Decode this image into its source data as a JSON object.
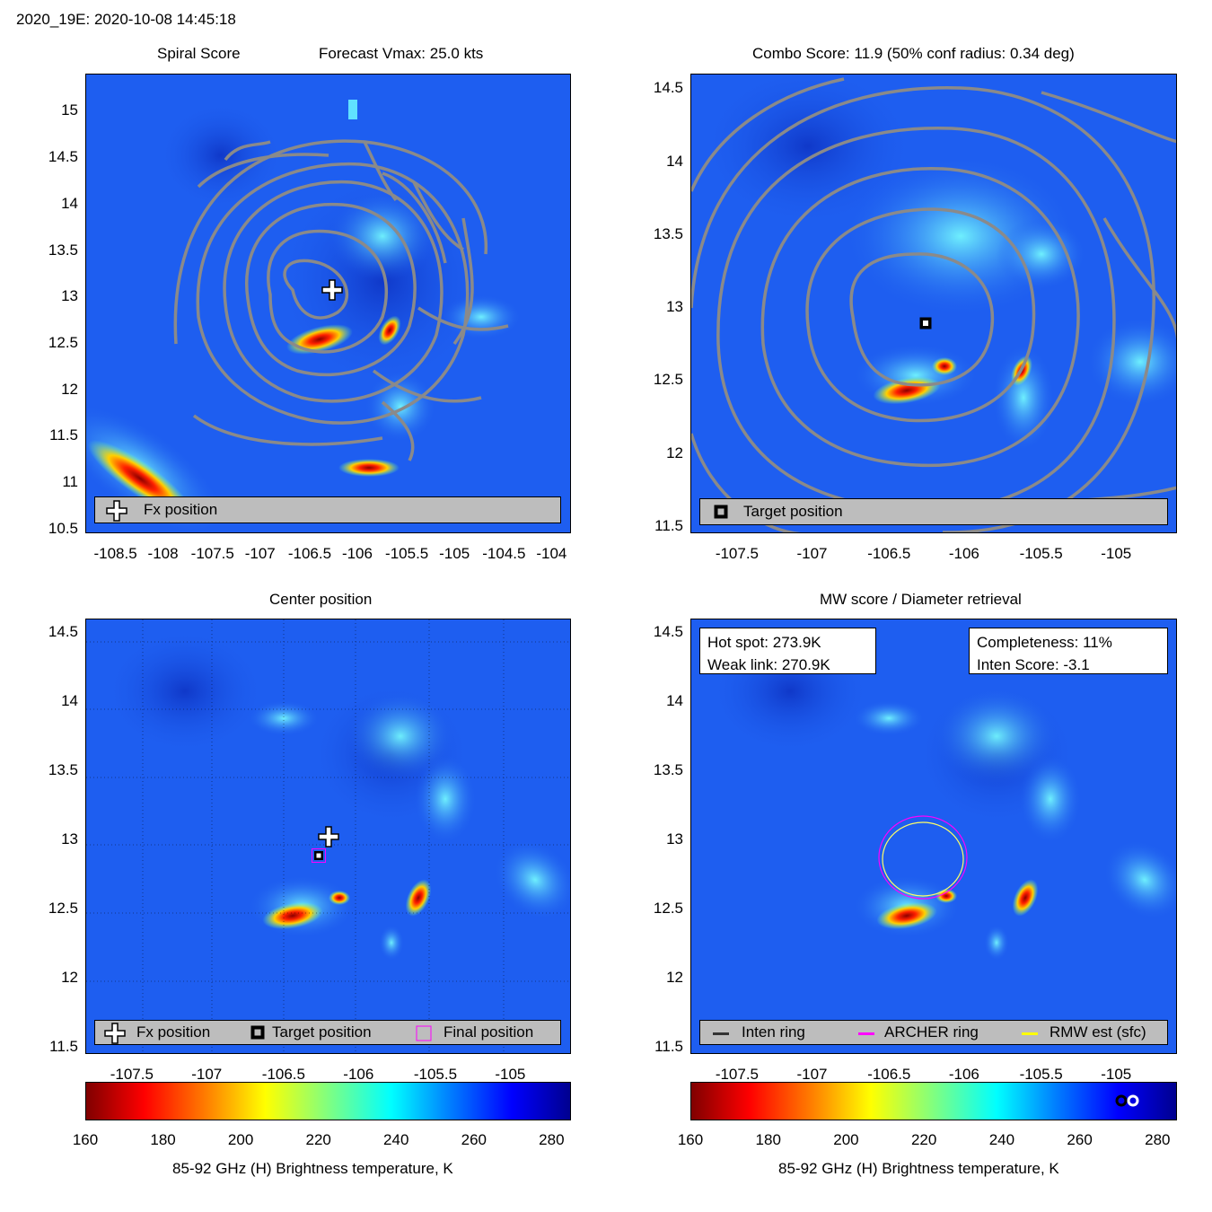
{
  "header": {
    "title": "2020_19E: 2020-10-08 14:45:18"
  },
  "panels": {
    "spiral": {
      "title_left": "Spiral Score",
      "title_right": "Forecast Vmax: 25.0 kts",
      "legend": [
        "Fx position"
      ]
    },
    "combo": {
      "title": "Combo Score: 11.9  (50% conf radius: 0.34 deg)",
      "legend": [
        "Target position"
      ]
    },
    "center": {
      "title": "Center position",
      "legend": [
        "Fx position",
        "Target position",
        "Final position"
      ]
    },
    "mw": {
      "title": "MW score / Diameter retrieval",
      "hot_spot": "Hot spot: 273.9K",
      "weak_link": "Weak link: 270.9K",
      "completeness": "Completeness: 11%",
      "inten_score": "Inten Score: -3.1",
      "legend": [
        "Inten ring",
        "ARCHER ring",
        "RMW est (sfc)"
      ]
    }
  },
  "colorbar": {
    "label": "85-92 GHz (H) Brightness temperature, K",
    "ticks": [
      "160",
      "180",
      "200",
      "220",
      "240",
      "260",
      "280"
    ]
  },
  "colors": {
    "ocean": "#1e5ef0",
    "contour": "#8a8a8a",
    "legend_bg": "#bdbdbd",
    "archer": "#ff00ff",
    "rmw": "#ffff00",
    "inten": "#333333"
  },
  "chart_data": [
    {
      "type": "heatmap",
      "title": "Spiral Score",
      "subtitle": "Forecast Vmax: 25.0 kts",
      "xticks": [
        "-108.5",
        "-108",
        "-107.5",
        "-107",
        "-106.5",
        "-106",
        "-105.5",
        "-105",
        "-104.5",
        "-104"
      ],
      "yticks": [
        "15",
        "14.5",
        "14",
        "13.5",
        "13",
        "12.5",
        "12",
        "11.5",
        "11",
        "10.5"
      ],
      "xlim": [
        -108.8,
        -103.8
      ],
      "ylim": [
        10.45,
        15.4
      ],
      "markers": [
        {
          "name": "Fx position",
          "lon": -106.15,
          "lat": 13.08
        }
      ]
    },
    {
      "type": "heatmap",
      "title": "Combo Score: 11.9  (50% conf radius: 0.34 deg)",
      "xticks": [
        "-107.5",
        "-107",
        "-106.5",
        "-106",
        "-105.5",
        "-105"
      ],
      "yticks": [
        "14.5",
        "14",
        "13.5",
        "13",
        "12.5",
        "12",
        "11.5"
      ],
      "xlim": [
        -107.8,
        -104.6
      ],
      "ylim": [
        11.45,
        14.6
      ],
      "markers": [
        {
          "name": "Target position",
          "lon": -106.25,
          "lat": 12.92
        }
      ]
    },
    {
      "type": "heatmap",
      "title": "Center position",
      "xticks": [
        "-107.5",
        "-107",
        "-106.5",
        "-106",
        "-105.5",
        "-105"
      ],
      "yticks": [
        "14.5",
        "14",
        "13.5",
        "13",
        "12.5",
        "12",
        "11.5"
      ],
      "xlim": [
        -107.8,
        -104.6
      ],
      "ylim": [
        11.45,
        14.6
      ],
      "markers": [
        {
          "name": "Fx position",
          "lon": -106.15,
          "lat": 13.07
        },
        {
          "name": "Target position",
          "lon": -106.24,
          "lat": 12.92
        },
        {
          "name": "Final position",
          "lon": -106.24,
          "lat": 12.92
        }
      ]
    },
    {
      "type": "heatmap",
      "title": "MW score / Diameter retrieval",
      "xticks": [
        "-107.5",
        "-107",
        "-106.5",
        "-106",
        "-105.5",
        "-105"
      ],
      "yticks": [
        "14.5",
        "14",
        "13.5",
        "13",
        "12.5",
        "12",
        "11.5"
      ],
      "xlim": [
        -107.8,
        -104.6
      ],
      "ylim": [
        11.45,
        14.6
      ],
      "rings": [
        {
          "name": "ARCHER ring",
          "lon": -106.23,
          "lat": 12.93,
          "radius_deg": 0.28
        },
        {
          "name": "RMW est (sfc)",
          "lon": -106.23,
          "lat": 12.93,
          "radius_deg": 0.26
        }
      ],
      "colorbar_markers": [
        {
          "name": "Weak link",
          "value": 270.9
        },
        {
          "name": "Hot spot",
          "value": 273.9
        }
      ]
    }
  ]
}
